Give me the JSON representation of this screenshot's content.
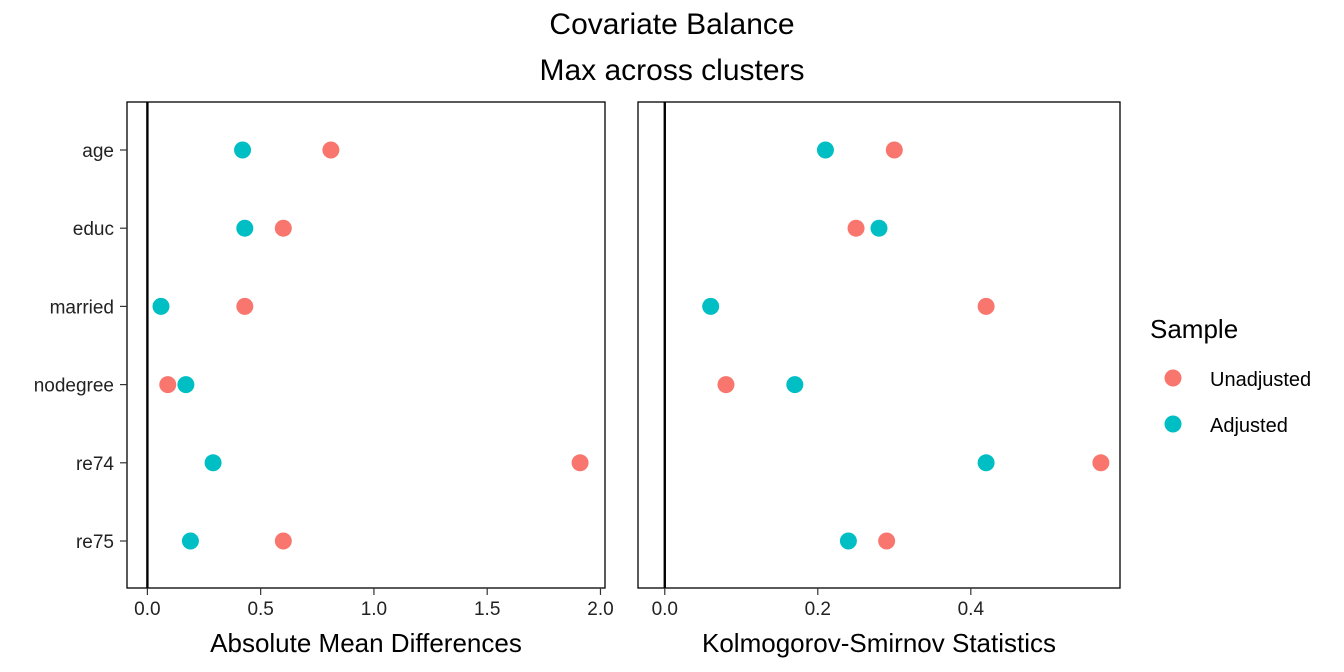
{
  "title_line1": "Covariate Balance",
  "title_line2": "Max across clusters",
  "legend": {
    "title": "Sample",
    "items": [
      {
        "label": "Unadjusted",
        "color": "#F8766D"
      },
      {
        "label": "Adjusted",
        "color": "#00BFC4"
      }
    ]
  },
  "chart_data": [
    {
      "type": "scatter",
      "xlabel": "Absolute Mean Differences",
      "categories": [
        "age",
        "educ",
        "married",
        "nodegree",
        "re74",
        "re75"
      ],
      "xlim": [
        -0.09,
        2.02
      ],
      "xticks": [
        0.0,
        0.5,
        1.0,
        1.5,
        2.0
      ],
      "xtick_labels": [
        "0.0",
        "0.5",
        "1.0",
        "1.5",
        "2.0"
      ],
      "reference_line": 0,
      "series": [
        {
          "name": "Unadjusted",
          "color": "#F8766D",
          "values": [
            0.81,
            0.6,
            0.43,
            0.09,
            1.91,
            0.6
          ]
        },
        {
          "name": "Adjusted",
          "color": "#00BFC4",
          "values": [
            0.42,
            0.43,
            0.06,
            0.17,
            0.29,
            0.19
          ]
        }
      ]
    },
    {
      "type": "scatter",
      "xlabel": "Kolmogorov-Smirnov Statistics",
      "categories": [
        "age",
        "educ",
        "married",
        "nodegree",
        "re74",
        "re75"
      ],
      "xlim": [
        -0.035,
        0.595
      ],
      "xticks": [
        0.0,
        0.2,
        0.4
      ],
      "xtick_labels": [
        "0.0",
        "0.2",
        "0.4"
      ],
      "reference_line": 0,
      "series": [
        {
          "name": "Unadjusted",
          "color": "#F8766D",
          "values": [
            0.3,
            0.25,
            0.42,
            0.08,
            0.57,
            0.29
          ]
        },
        {
          "name": "Adjusted",
          "color": "#00BFC4",
          "values": [
            0.21,
            0.28,
            0.06,
            0.17,
            0.42,
            0.24
          ]
        }
      ]
    }
  ]
}
